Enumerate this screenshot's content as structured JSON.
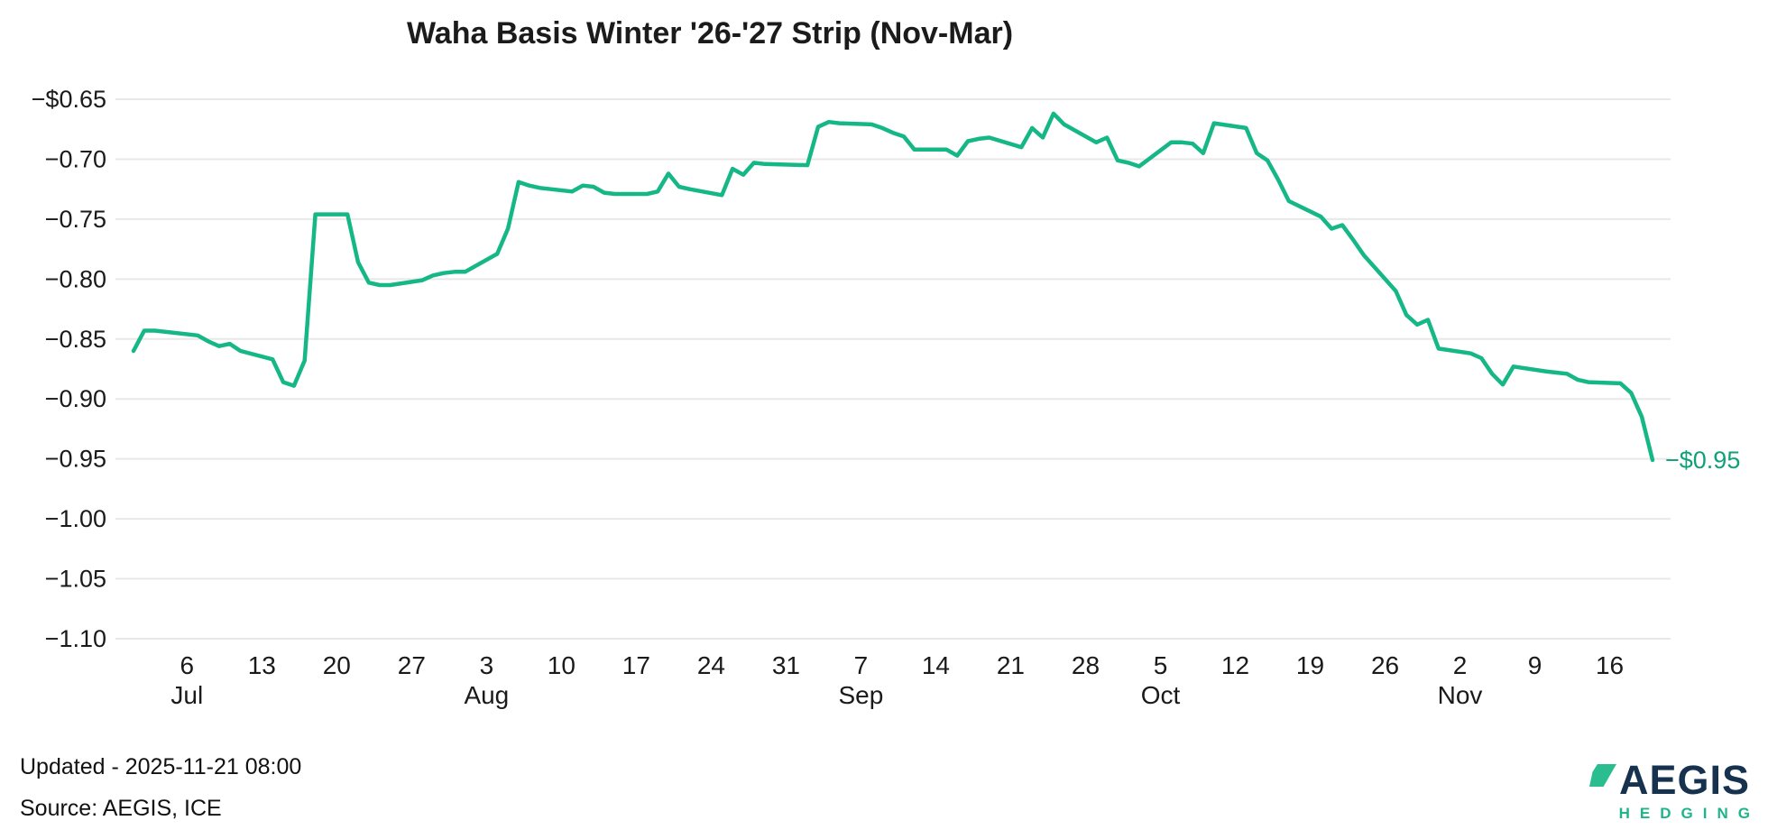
{
  "title": "Waha Basis Winter '26-'27 Strip (Nov-Mar)",
  "footer": {
    "updated": "Updated - 2025-11-21 08:00",
    "source": "Source: AEGIS, ICE"
  },
  "logo": {
    "name": "AEGIS",
    "subtitle": "HEDGING"
  },
  "colors": {
    "line": "#16b786",
    "end_label": "#10a179",
    "grid": "#e8e8e8",
    "text": "#1a1a1a",
    "logo_navy": "#16324f",
    "logo_green": "#2abd90"
  },
  "chart_data": {
    "type": "line",
    "title": "Waha Basis Winter '26-'27 Strip (Nov-Mar)",
    "xlabel": "",
    "ylabel": "",
    "ylim": [
      -1.1,
      -0.65
    ],
    "grid": "horizontal",
    "legend": "none",
    "last_value_label": "−$0.95",
    "y_ticks": [
      {
        "label": "−$0.65",
        "value": -0.65
      },
      {
        "label": "−0.70",
        "value": -0.7
      },
      {
        "label": "−0.75",
        "value": -0.75
      },
      {
        "label": "−0.80",
        "value": -0.8
      },
      {
        "label": "−0.85",
        "value": -0.85
      },
      {
        "label": "−0.90",
        "value": -0.9
      },
      {
        "label": "−0.95",
        "value": -0.95
      },
      {
        "label": "−1.00",
        "value": -1.0
      },
      {
        "label": "−1.05",
        "value": -1.05
      },
      {
        "label": "−1.10",
        "value": -1.1
      }
    ],
    "x_ticks": [
      {
        "label": "6",
        "month": "Jul",
        "date": "2025-07-06"
      },
      {
        "label": "13",
        "date": "2025-07-13"
      },
      {
        "label": "20",
        "date": "2025-07-20"
      },
      {
        "label": "27",
        "date": "2025-07-27"
      },
      {
        "label": "3",
        "month": "Aug",
        "date": "2025-08-03"
      },
      {
        "label": "10",
        "date": "2025-08-10"
      },
      {
        "label": "17",
        "date": "2025-08-17"
      },
      {
        "label": "24",
        "date": "2025-08-24"
      },
      {
        "label": "31",
        "date": "2025-08-31"
      },
      {
        "label": "7",
        "month": "Sep",
        "date": "2025-09-07"
      },
      {
        "label": "14",
        "date": "2025-09-14"
      },
      {
        "label": "21",
        "date": "2025-09-21"
      },
      {
        "label": "28",
        "date": "2025-09-28"
      },
      {
        "label": "5",
        "month": "Oct",
        "date": "2025-10-05"
      },
      {
        "label": "12",
        "date": "2025-10-12"
      },
      {
        "label": "19",
        "date": "2025-10-19"
      },
      {
        "label": "26",
        "date": "2025-10-26"
      },
      {
        "label": "2",
        "month": "Nov",
        "date": "2025-11-02"
      },
      {
        "label": "9",
        "date": "2025-11-09"
      },
      {
        "label": "16",
        "date": "2025-11-16"
      }
    ],
    "series": [
      {
        "name": "Waha Basis Winter '26-'27 Strip (Nov-Mar)",
        "points": [
          [
            "2025-07-01",
            -0.86
          ],
          [
            "2025-07-02",
            -0.843
          ],
          [
            "2025-07-03",
            -0.843
          ],
          [
            "2025-07-07",
            -0.847
          ],
          [
            "2025-07-08",
            -0.852
          ],
          [
            "2025-07-09",
            -0.856
          ],
          [
            "2025-07-10",
            -0.854
          ],
          [
            "2025-07-11",
            -0.86
          ],
          [
            "2025-07-14",
            -0.867
          ],
          [
            "2025-07-15",
            -0.886
          ],
          [
            "2025-07-16",
            -0.889
          ],
          [
            "2025-07-17",
            -0.868
          ],
          [
            "2025-07-18",
            -0.746
          ],
          [
            "2025-07-21",
            -0.746
          ],
          [
            "2025-07-22",
            -0.786
          ],
          [
            "2025-07-23",
            -0.803
          ],
          [
            "2025-07-24",
            -0.805
          ],
          [
            "2025-07-25",
            -0.805
          ],
          [
            "2025-07-28",
            -0.801
          ],
          [
            "2025-07-29",
            -0.797
          ],
          [
            "2025-07-30",
            -0.795
          ],
          [
            "2025-07-31",
            -0.794
          ],
          [
            "2025-08-01",
            -0.794
          ],
          [
            "2025-08-04",
            -0.779
          ],
          [
            "2025-08-05",
            -0.758
          ],
          [
            "2025-08-06",
            -0.719
          ],
          [
            "2025-08-07",
            -0.722
          ],
          [
            "2025-08-08",
            -0.724
          ],
          [
            "2025-08-11",
            -0.727
          ],
          [
            "2025-08-12",
            -0.722
          ],
          [
            "2025-08-13",
            -0.723
          ],
          [
            "2025-08-14",
            -0.728
          ],
          [
            "2025-08-15",
            -0.729
          ],
          [
            "2025-08-18",
            -0.729
          ],
          [
            "2025-08-19",
            -0.727
          ],
          [
            "2025-08-20",
            -0.712
          ],
          [
            "2025-08-21",
            -0.723
          ],
          [
            "2025-08-22",
            -0.725
          ],
          [
            "2025-08-25",
            -0.73
          ],
          [
            "2025-08-26",
            -0.708
          ],
          [
            "2025-08-27",
            -0.713
          ],
          [
            "2025-08-28",
            -0.703
          ],
          [
            "2025-08-29",
            -0.704
          ],
          [
            "2025-09-02",
            -0.705
          ],
          [
            "2025-09-03",
            -0.673
          ],
          [
            "2025-09-04",
            -0.669
          ],
          [
            "2025-09-05",
            -0.67
          ],
          [
            "2025-09-08",
            -0.671
          ],
          [
            "2025-09-09",
            -0.674
          ],
          [
            "2025-09-10",
            -0.678
          ],
          [
            "2025-09-11",
            -0.681
          ],
          [
            "2025-09-12",
            -0.692
          ],
          [
            "2025-09-15",
            -0.692
          ],
          [
            "2025-09-16",
            -0.697
          ],
          [
            "2025-09-17",
            -0.685
          ],
          [
            "2025-09-18",
            -0.683
          ],
          [
            "2025-09-19",
            -0.682
          ],
          [
            "2025-09-22",
            -0.69
          ],
          [
            "2025-09-23",
            -0.674
          ],
          [
            "2025-09-24",
            -0.682
          ],
          [
            "2025-09-25",
            -0.662
          ],
          [
            "2025-09-26",
            -0.671
          ],
          [
            "2025-09-29",
            -0.686
          ],
          [
            "2025-09-30",
            -0.682
          ],
          [
            "2025-10-01",
            -0.701
          ],
          [
            "2025-10-02",
            -0.703
          ],
          [
            "2025-10-03",
            -0.706
          ],
          [
            "2025-10-06",
            -0.686
          ],
          [
            "2025-10-07",
            -0.686
          ],
          [
            "2025-10-08",
            -0.687
          ],
          [
            "2025-10-09",
            -0.695
          ],
          [
            "2025-10-10",
            -0.67
          ],
          [
            "2025-10-13",
            -0.674
          ],
          [
            "2025-10-14",
            -0.695
          ],
          [
            "2025-10-15",
            -0.701
          ],
          [
            "2025-10-16",
            -0.717
          ],
          [
            "2025-10-17",
            -0.735
          ],
          [
            "2025-10-20",
            -0.748
          ],
          [
            "2025-10-21",
            -0.758
          ],
          [
            "2025-10-22",
            -0.755
          ],
          [
            "2025-10-23",
            -0.767
          ],
          [
            "2025-10-24",
            -0.78
          ],
          [
            "2025-10-27",
            -0.81
          ],
          [
            "2025-10-28",
            -0.83
          ],
          [
            "2025-10-29",
            -0.838
          ],
          [
            "2025-10-30",
            -0.834
          ],
          [
            "2025-10-31",
            -0.858
          ],
          [
            "2025-11-03",
            -0.862
          ],
          [
            "2025-11-04",
            -0.866
          ],
          [
            "2025-11-05",
            -0.879
          ],
          [
            "2025-11-06",
            -0.888
          ],
          [
            "2025-11-07",
            -0.873
          ],
          [
            "2025-11-10",
            -0.877
          ],
          [
            "2025-11-11",
            -0.878
          ],
          [
            "2025-11-12",
            -0.879
          ],
          [
            "2025-11-13",
            -0.884
          ],
          [
            "2025-11-14",
            -0.886
          ],
          [
            "2025-11-17",
            -0.887
          ],
          [
            "2025-11-18",
            -0.895
          ],
          [
            "2025-11-19",
            -0.915
          ],
          [
            "2025-11-20",
            -0.951
          ]
        ]
      }
    ]
  }
}
